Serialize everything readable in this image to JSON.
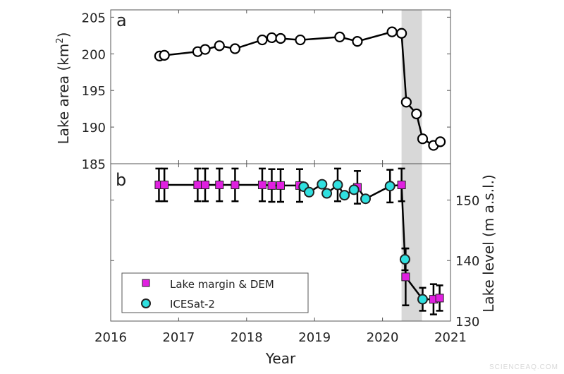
{
  "chart_data": [
    {
      "panel": "a",
      "type": "line",
      "xlabel": "Year",
      "ylabel": "Lake area (km",
      "ylabel_sup": "2",
      "ylabel_end": ")",
      "xlim": [
        2016,
        2021
      ],
      "ylim": [
        185,
        206
      ],
      "yticks": [
        185,
        190,
        195,
        200,
        205
      ],
      "shaded_x": [
        2020.28,
        2020.58
      ],
      "series": [
        {
          "marker": "open-circle",
          "x": [
            2016.72,
            2016.79,
            2017.28,
            2017.39,
            2017.6,
            2017.83,
            2018.23,
            2018.37,
            2018.5,
            2018.79,
            2019.37,
            2019.63,
            2020.14,
            2020.28,
            2020.35,
            2020.5,
            2020.59,
            2020.75,
            2020.85
          ],
          "y": [
            199.7,
            199.8,
            200.3,
            200.6,
            201.1,
            200.7,
            201.9,
            202.2,
            202.1,
            201.9,
            202.3,
            201.7,
            203.0,
            202.8,
            193.4,
            191.8,
            188.4,
            187.5,
            188.0
          ]
        }
      ]
    },
    {
      "panel": "b",
      "type": "scatter",
      "xlabel": "Year",
      "ylabel": "Lake level (m a.s.l.)",
      "xlim": [
        2016,
        2021
      ],
      "ylim": [
        130,
        156
      ],
      "xticks": [
        2016,
        2017,
        2018,
        2019,
        2020,
        2021
      ],
      "yticks": [
        130,
        140,
        150
      ],
      "shaded_x": [
        2020.28,
        2020.58
      ],
      "legend": "bottom-left",
      "series": [
        {
          "name": "Lake margin & DEM",
          "marker": "square",
          "color": "#e020e0",
          "x": [
            2016.71,
            2016.79,
            2017.28,
            2017.39,
            2017.6,
            2017.83,
            2018.23,
            2018.37,
            2018.5,
            2018.78,
            2019.63,
            2020.28,
            2020.34,
            2020.75,
            2020.84
          ],
          "y": [
            152.5,
            152.5,
            152.5,
            152.5,
            152.5,
            152.5,
            152.5,
            152.4,
            152.4,
            152.4,
            152.1,
            152.5,
            137.3,
            133.6,
            133.8
          ],
          "err": [
            2.7,
            2.7,
            2.7,
            2.7,
            2.7,
            2.7,
            2.7,
            2.7,
            2.7,
            2.7,
            2.7,
            2.7,
            4.7,
            2.5,
            2.1
          ]
        },
        {
          "name": "ICESat-2",
          "marker": "circle",
          "color": "#30e0e0",
          "x": [
            2018.84,
            2018.92,
            2019.11,
            2019.18,
            2019.34,
            2019.44,
            2019.58,
            2019.75,
            2020.11,
            2020.33,
            2020.59
          ],
          "y": [
            152.2,
            151.3,
            152.6,
            151.1,
            152.5,
            150.8,
            151.7,
            150.2,
            152.3,
            140.2,
            133.6
          ],
          "err": [
            0,
            0,
            0,
            0,
            2.7,
            0,
            0,
            0,
            2.7,
            1.8,
            1.9
          ]
        }
      ]
    }
  ],
  "labels": {
    "panel_a": "a",
    "panel_b": "b"
  },
  "watermark": "SCIENCEAQ.COM"
}
